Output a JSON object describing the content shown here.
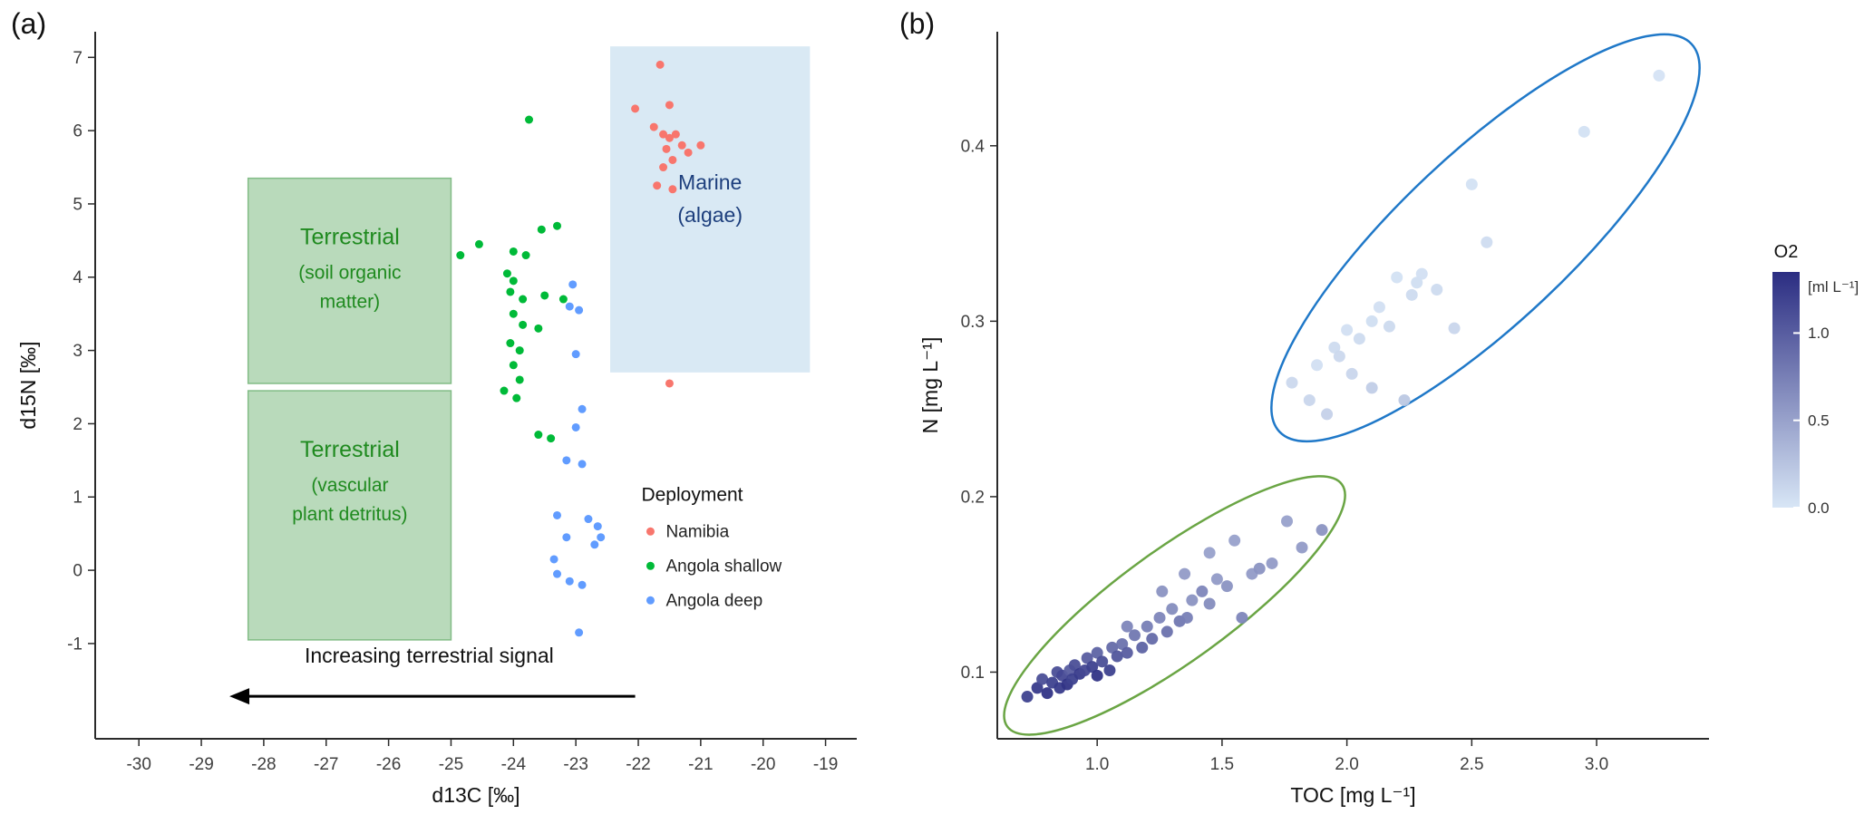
{
  "panels": {
    "a": {
      "label": "(a)"
    },
    "b": {
      "label": "(b)"
    }
  },
  "chart_data": [
    {
      "id": "a",
      "type": "scatter",
      "xlabel": "d13C [‰]",
      "ylabel": "d15N [‰]",
      "xlim": [
        -30.7,
        -18.5
      ],
      "ylim": [
        -2.3,
        7.35
      ],
      "grid": false,
      "xticks": {
        "values": [
          -30,
          -29,
          -28,
          -27,
          -26,
          -25,
          -24,
          -23,
          -22,
          -21,
          -20,
          -19
        ],
        "labels": [
          "-30",
          "-29",
          "-28",
          "-27",
          "-26",
          "-25",
          "-24",
          "-23",
          "-22",
          "-21",
          "-20",
          "-19"
        ]
      },
      "yticks": {
        "values": [
          -1,
          0,
          1,
          2,
          3,
          4,
          5,
          6,
          7
        ],
        "labels": [
          "-1",
          "0",
          "1",
          "2",
          "3",
          "4",
          "5",
          "6",
          "7"
        ]
      },
      "regions": [
        {
          "name": "terrestrial-soil-organic-matter-region",
          "fill": "#b9dabb",
          "stroke": "#82bc86",
          "x": [
            -28.25,
            -25.0
          ],
          "y": [
            2.55,
            5.35
          ],
          "labels": [
            {
              "text": "Terrestrial",
              "x": -26.62,
              "y": 4.45,
              "size": 25,
              "color": "#1f8a1f"
            },
            {
              "text": "(soil organic",
              "x": -26.62,
              "y": 3.98,
              "size": 21,
              "color": "#1f8a1f"
            },
            {
              "text": "matter)",
              "x": -26.62,
              "y": 3.58,
              "size": 21,
              "color": "#1f8a1f"
            }
          ]
        },
        {
          "name": "terrestrial-vascular-plant-detritus-region",
          "fill": "#b9dabb",
          "stroke": "#82bc86",
          "x": [
            -28.25,
            -25.0
          ],
          "y": [
            -0.95,
            2.45
          ],
          "labels": [
            {
              "text": "Terrestrial",
              "x": -26.62,
              "y": 1.55,
              "size": 25,
              "color": "#1f8a1f"
            },
            {
              "text": "(vascular",
              "x": -26.62,
              "y": 1.08,
              "size": 21,
              "color": "#1f8a1f"
            },
            {
              "text": "plant detritus)",
              "x": -26.62,
              "y": 0.68,
              "size": 21,
              "color": "#1f8a1f"
            }
          ]
        },
        {
          "name": "marine-algae-region",
          "fill": "#d9e9f4",
          "stroke": "none",
          "x": [
            -22.45,
            -19.25
          ],
          "y": [
            2.7,
            7.15
          ],
          "labels": [
            {
              "text": "Marine",
              "x": -20.85,
              "y": 5.2,
              "size": 23,
              "color": "#1d3f7d"
            },
            {
              "text": "(algae)",
              "x": -20.85,
              "y": 4.75,
              "size": 23,
              "color": "#1d3f7d"
            }
          ]
        }
      ],
      "arrow": {
        "text": "Increasing terrestrial signal",
        "x_tail": -22.05,
        "x_head": -28.55,
        "y": -1.72,
        "text_x": -25.35,
        "text_y": -1.26,
        "color": "#000000"
      },
      "legend": {
        "title": "Deployment",
        "x": -21.95,
        "y": 0.95,
        "items": [
          {
            "label": "Namibia",
            "color": "#F8766D"
          },
          {
            "label": "Angola shallow",
            "color": "#00BA38"
          },
          {
            "label": "Angola deep",
            "color": "#619CFF"
          }
        ]
      },
      "series": [
        {
          "name": "Namibia",
          "color": "#F8766D",
          "points": [
            [
              -22.05,
              6.3
            ],
            [
              -21.65,
              6.9
            ],
            [
              -21.5,
              6.35
            ],
            [
              -21.75,
              6.05
            ],
            [
              -21.6,
              5.95
            ],
            [
              -21.5,
              5.9
            ],
            [
              -21.4,
              5.95
            ],
            [
              -21.3,
              5.8
            ],
            [
              -21.55,
              5.75
            ],
            [
              -21.2,
              5.7
            ],
            [
              -21.0,
              5.8
            ],
            [
              -21.45,
              5.6
            ],
            [
              -21.6,
              5.5
            ],
            [
              -21.7,
              5.25
            ],
            [
              -21.45,
              5.2
            ],
            [
              -21.5,
              2.55
            ]
          ]
        },
        {
          "name": "Angola shallow",
          "color": "#00BA38",
          "points": [
            [
              -23.75,
              6.15
            ],
            [
              -23.55,
              4.65
            ],
            [
              -23.3,
              4.7
            ],
            [
              -24.85,
              4.3
            ],
            [
              -24.55,
              4.45
            ],
            [
              -24.0,
              4.35
            ],
            [
              -23.8,
              4.3
            ],
            [
              -24.1,
              4.05
            ],
            [
              -24.0,
              3.95
            ],
            [
              -24.05,
              3.8
            ],
            [
              -23.85,
              3.7
            ],
            [
              -23.5,
              3.75
            ],
            [
              -23.2,
              3.7
            ],
            [
              -24.0,
              3.5
            ],
            [
              -23.85,
              3.35
            ],
            [
              -23.6,
              3.3
            ],
            [
              -24.05,
              3.1
            ],
            [
              -23.9,
              3.0
            ],
            [
              -24.0,
              2.8
            ],
            [
              -23.9,
              2.6
            ],
            [
              -24.15,
              2.45
            ],
            [
              -23.95,
              2.35
            ],
            [
              -23.6,
              1.85
            ],
            [
              -23.4,
              1.8
            ]
          ]
        },
        {
          "name": "Angola deep",
          "color": "#619CFF",
          "points": [
            [
              -23.05,
              3.9
            ],
            [
              -23.1,
              3.6
            ],
            [
              -22.95,
              3.55
            ],
            [
              -23.0,
              2.95
            ],
            [
              -22.9,
              2.2
            ],
            [
              -23.0,
              1.95
            ],
            [
              -23.15,
              1.5
            ],
            [
              -22.9,
              1.45
            ],
            [
              -23.3,
              0.75
            ],
            [
              -22.8,
              0.7
            ],
            [
              -22.65,
              0.6
            ],
            [
              -23.15,
              0.45
            ],
            [
              -22.7,
              0.35
            ],
            [
              -22.6,
              0.45
            ],
            [
              -23.35,
              0.15
            ],
            [
              -23.3,
              -0.05
            ],
            [
              -23.1,
              -0.15
            ],
            [
              -22.9,
              -0.2
            ],
            [
              -22.95,
              -0.85
            ]
          ]
        }
      ]
    },
    {
      "id": "b",
      "type": "scatter",
      "xlabel": "TOC [mg L⁻¹]",
      "ylabel": "N [mg L⁻¹]",
      "xlim": [
        0.6,
        3.45
      ],
      "ylim": [
        0.062,
        0.465
      ],
      "grid": false,
      "xticks": {
        "values": [
          1.0,
          1.5,
          2.0,
          2.5,
          3.0
        ],
        "labels": [
          "1.0",
          "1.5",
          "2.0",
          "2.5",
          "3.0"
        ]
      },
      "yticks": {
        "values": [
          0.1,
          0.2,
          0.3,
          0.4
        ],
        "labels": [
          "0.1",
          "0.2",
          "0.3",
          "0.4"
        ]
      },
      "colorbar": {
        "title": "O2",
        "unit": "[ml L⁻¹]",
        "domain": [
          0,
          1.35
        ],
        "low": "#d8e6f6",
        "high": "#2b2d82",
        "ticks": {
          "values": [
            1.0,
            0.5,
            0.0
          ],
          "labels": [
            "1.0",
            "0.5",
            "0.0"
          ]
        }
      },
      "ellipses": [
        {
          "name": "low-oxygen-cluster-ellipse",
          "color": "#1f78c8",
          "x1": 1.73,
          "y1": 0.237,
          "x2": 3.38,
          "y2": 0.458,
          "minor_ratio": 0.3
        },
        {
          "name": "high-oxygen-cluster-ellipse",
          "color": "#6aa544",
          "x1": 0.64,
          "y1": 0.069,
          "x2": 1.98,
          "y2": 0.207,
          "minor_ratio": 0.27
        }
      ],
      "points": [
        [
          0.72,
          0.086,
          1.2
        ],
        [
          0.76,
          0.091,
          1.25
        ],
        [
          0.78,
          0.096,
          1.1
        ],
        [
          0.8,
          0.088,
          1.3
        ],
        [
          0.82,
          0.094,
          1.2
        ],
        [
          0.84,
          0.1,
          1.1
        ],
        [
          0.85,
          0.091,
          1.25
        ],
        [
          0.86,
          0.098,
          1.15
        ],
        [
          0.88,
          0.093,
          1.3
        ],
        [
          0.89,
          0.101,
          1.0
        ],
        [
          0.9,
          0.096,
          1.2
        ],
        [
          0.91,
          0.104,
          1.1
        ],
        [
          0.93,
          0.099,
          1.25
        ],
        [
          0.95,
          0.101,
          1.15
        ],
        [
          0.96,
          0.108,
          1.0
        ],
        [
          0.98,
          0.103,
          1.2
        ],
        [
          1.0,
          0.098,
          1.3
        ],
        [
          1.0,
          0.111,
          0.95
        ],
        [
          1.02,
          0.106,
          1.1
        ],
        [
          1.05,
          0.101,
          1.2
        ],
        [
          1.06,
          0.114,
          0.9
        ],
        [
          1.08,
          0.109,
          1.05
        ],
        [
          1.1,
          0.116,
          0.85
        ],
        [
          1.12,
          0.111,
          1.0
        ],
        [
          1.12,
          0.126,
          0.7
        ],
        [
          1.15,
          0.121,
          0.8
        ],
        [
          1.18,
          0.114,
          0.95
        ],
        [
          1.2,
          0.126,
          0.75
        ],
        [
          1.22,
          0.119,
          0.9
        ],
        [
          1.25,
          0.131,
          0.7
        ],
        [
          1.26,
          0.146,
          0.6
        ],
        [
          1.28,
          0.123,
          0.85
        ],
        [
          1.3,
          0.136,
          0.65
        ],
        [
          1.33,
          0.129,
          0.8
        ],
        [
          1.35,
          0.156,
          0.55
        ],
        [
          1.36,
          0.131,
          0.75
        ],
        [
          1.38,
          0.141,
          0.6
        ],
        [
          1.42,
          0.146,
          0.7
        ],
        [
          1.45,
          0.139,
          0.65
        ],
        [
          1.45,
          0.168,
          0.5
        ],
        [
          1.48,
          0.153,
          0.55
        ],
        [
          1.52,
          0.149,
          0.6
        ],
        [
          1.55,
          0.175,
          0.5
        ],
        [
          1.58,
          0.131,
          0.7
        ],
        [
          1.62,
          0.156,
          0.55
        ],
        [
          1.65,
          0.159,
          0.6
        ],
        [
          1.7,
          0.162,
          0.55
        ],
        [
          1.76,
          0.186,
          0.5
        ],
        [
          1.82,
          0.171,
          0.55
        ],
        [
          1.9,
          0.181,
          0.6
        ],
        [
          1.78,
          0.265,
          0.1
        ],
        [
          1.85,
          0.255,
          0.12
        ],
        [
          1.88,
          0.275,
          0.05
        ],
        [
          1.92,
          0.247,
          0.15
        ],
        [
          1.95,
          0.285,
          0.08
        ],
        [
          1.97,
          0.28,
          0.1
        ],
        [
          2.0,
          0.295,
          0.05
        ],
        [
          2.02,
          0.27,
          0.12
        ],
        [
          2.05,
          0.29,
          0.08
        ],
        [
          2.1,
          0.3,
          0.06
        ],
        [
          2.1,
          0.262,
          0.18
        ],
        [
          2.13,
          0.308,
          0.05
        ],
        [
          2.17,
          0.297,
          0.09
        ],
        [
          2.2,
          0.325,
          0.04
        ],
        [
          2.23,
          0.255,
          0.22
        ],
        [
          2.26,
          0.315,
          0.08
        ],
        [
          2.28,
          0.322,
          0.06
        ],
        [
          2.3,
          0.327,
          0.05
        ],
        [
          2.36,
          0.318,
          0.08
        ],
        [
          2.43,
          0.296,
          0.12
        ],
        [
          2.5,
          0.378,
          0.04
        ],
        [
          2.56,
          0.345,
          0.07
        ],
        [
          2.95,
          0.408,
          0.04
        ],
        [
          3.25,
          0.44,
          0.02
        ]
      ]
    }
  ]
}
